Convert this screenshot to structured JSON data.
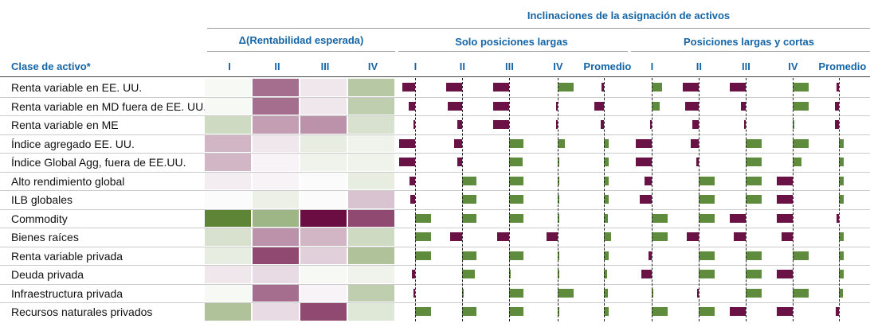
{
  "chart_data": {
    "type": "table",
    "title": "Inclinaciones de la asignación de activos",
    "row_header": "Clase de activo*",
    "groups": [
      {
        "name": "Δ(Rentabilidad esperada)",
        "columns": [
          "I",
          "II",
          "III",
          "IV"
        ]
      },
      {
        "name": "Solo posiciones largas",
        "columns": [
          "I",
          "II",
          "III",
          "IV",
          "Promedio"
        ]
      },
      {
        "name": "Posiciones largas y cortas",
        "columns": [
          "I",
          "II",
          "III",
          "IV",
          "Promedio"
        ]
      }
    ],
    "rows": [
      "Renta variable en EE. UU.",
      "Renta variable en MD fuera de EE. UU.",
      "Renta variable en ME",
      "Índice agregado EE. UU.",
      "Índice Global Agg, fuera de EE.UU.",
      "Alto rendimiento global",
      "ILB globales",
      "Commodity",
      "Bienes raíces",
      "Renta variable privada",
      "Deuda privada",
      "Infraestructura privada",
      "Recursos naturales privados"
    ],
    "heatmap": [
      [
        0.05,
        -0.6,
        -0.1,
        0.45
      ],
      [
        0.05,
        -0.6,
        -0.1,
        0.4
      ],
      [
        0.3,
        -0.4,
        -0.45,
        0.25
      ],
      [
        -0.3,
        -0.1,
        0.15,
        0.1
      ],
      [
        -0.3,
        -0.05,
        0.1,
        0.1
      ],
      [
        -0.08,
        -0.05,
        0.0,
        0.15
      ],
      [
        0.0,
        0.12,
        0.0,
        -0.25
      ],
      [
        1.0,
        0.6,
        -1.0,
        -0.75
      ],
      [
        0.25,
        -0.45,
        -0.3,
        0.3
      ],
      [
        0.15,
        -0.75,
        -0.2,
        0.5
      ],
      [
        -0.1,
        -0.15,
        0.05,
        0.1
      ],
      [
        0.05,
        -0.6,
        -0.05,
        0.4
      ],
      [
        0.5,
        -0.15,
        -0.75,
        0.2
      ]
    ],
    "long_only": [
      [
        -0.8,
        -1.0,
        -1.0,
        1.0,
        -0.15
      ],
      [
        -0.4,
        -0.9,
        -1.0,
        -0.05,
        -0.6
      ],
      [
        -0.1,
        -0.3,
        -1.0,
        -0.05,
        -0.2
      ],
      [
        -1.0,
        -0.5,
        0.9,
        0.45,
        0.3
      ],
      [
        -1.0,
        -0.3,
        0.85,
        0.05,
        0.3
      ],
      [
        -0.35,
        0.9,
        0.9,
        0.05,
        0.3
      ],
      [
        -0.3,
        0.9,
        0.9,
        0.05,
        0.3
      ],
      [
        1.0,
        0.9,
        0.9,
        0.05,
        0.25
      ],
      [
        1.0,
        -0.75,
        -0.75,
        -0.7,
        0.45
      ],
      [
        1.0,
        0.9,
        0.9,
        0.05,
        0.3
      ],
      [
        -0.2,
        0.8,
        0.05,
        0.05,
        0.2
      ],
      [
        -0.05,
        0.05,
        0.9,
        1.0,
        0.25
      ],
      [
        1.0,
        0.9,
        0.9,
        0.05,
        0.3
      ]
    ],
    "long_short": [
      [
        0.65,
        -1.0,
        -1.0,
        1.0,
        -0.15
      ],
      [
        0.5,
        -0.85,
        -0.3,
        1.0,
        -0.25
      ],
      [
        -0.1,
        -0.4,
        -0.05,
        0.05,
        -0.25
      ],
      [
        -1.0,
        -0.5,
        1.0,
        1.0,
        0.3
      ],
      [
        -1.0,
        -0.15,
        1.0,
        0.55,
        0.3
      ],
      [
        -0.45,
        1.0,
        1.0,
        -1.0,
        0.3
      ],
      [
        -0.75,
        1.0,
        1.0,
        -1.0,
        0.3
      ],
      [
        1.0,
        1.0,
        -1.0,
        -1.0,
        -0.15
      ],
      [
        1.0,
        -0.75,
        -0.75,
        -0.7,
        0.3
      ],
      [
        -0.2,
        1.0,
        1.0,
        1.0,
        0.3
      ],
      [
        -0.65,
        1.0,
        1.0,
        -1.0,
        0.3
      ],
      [
        0.05,
        -0.05,
        1.0,
        1.0,
        0.25
      ],
      [
        1.0,
        1.0,
        -1.0,
        -1.0,
        -0.2
      ]
    ],
    "colors": {
      "header": "#1565a6",
      "positive": "#5e8c3c",
      "negative": "#6a1245",
      "heat_pos": "#5e8535",
      "heat_neg": "#6b0d42"
    }
  }
}
